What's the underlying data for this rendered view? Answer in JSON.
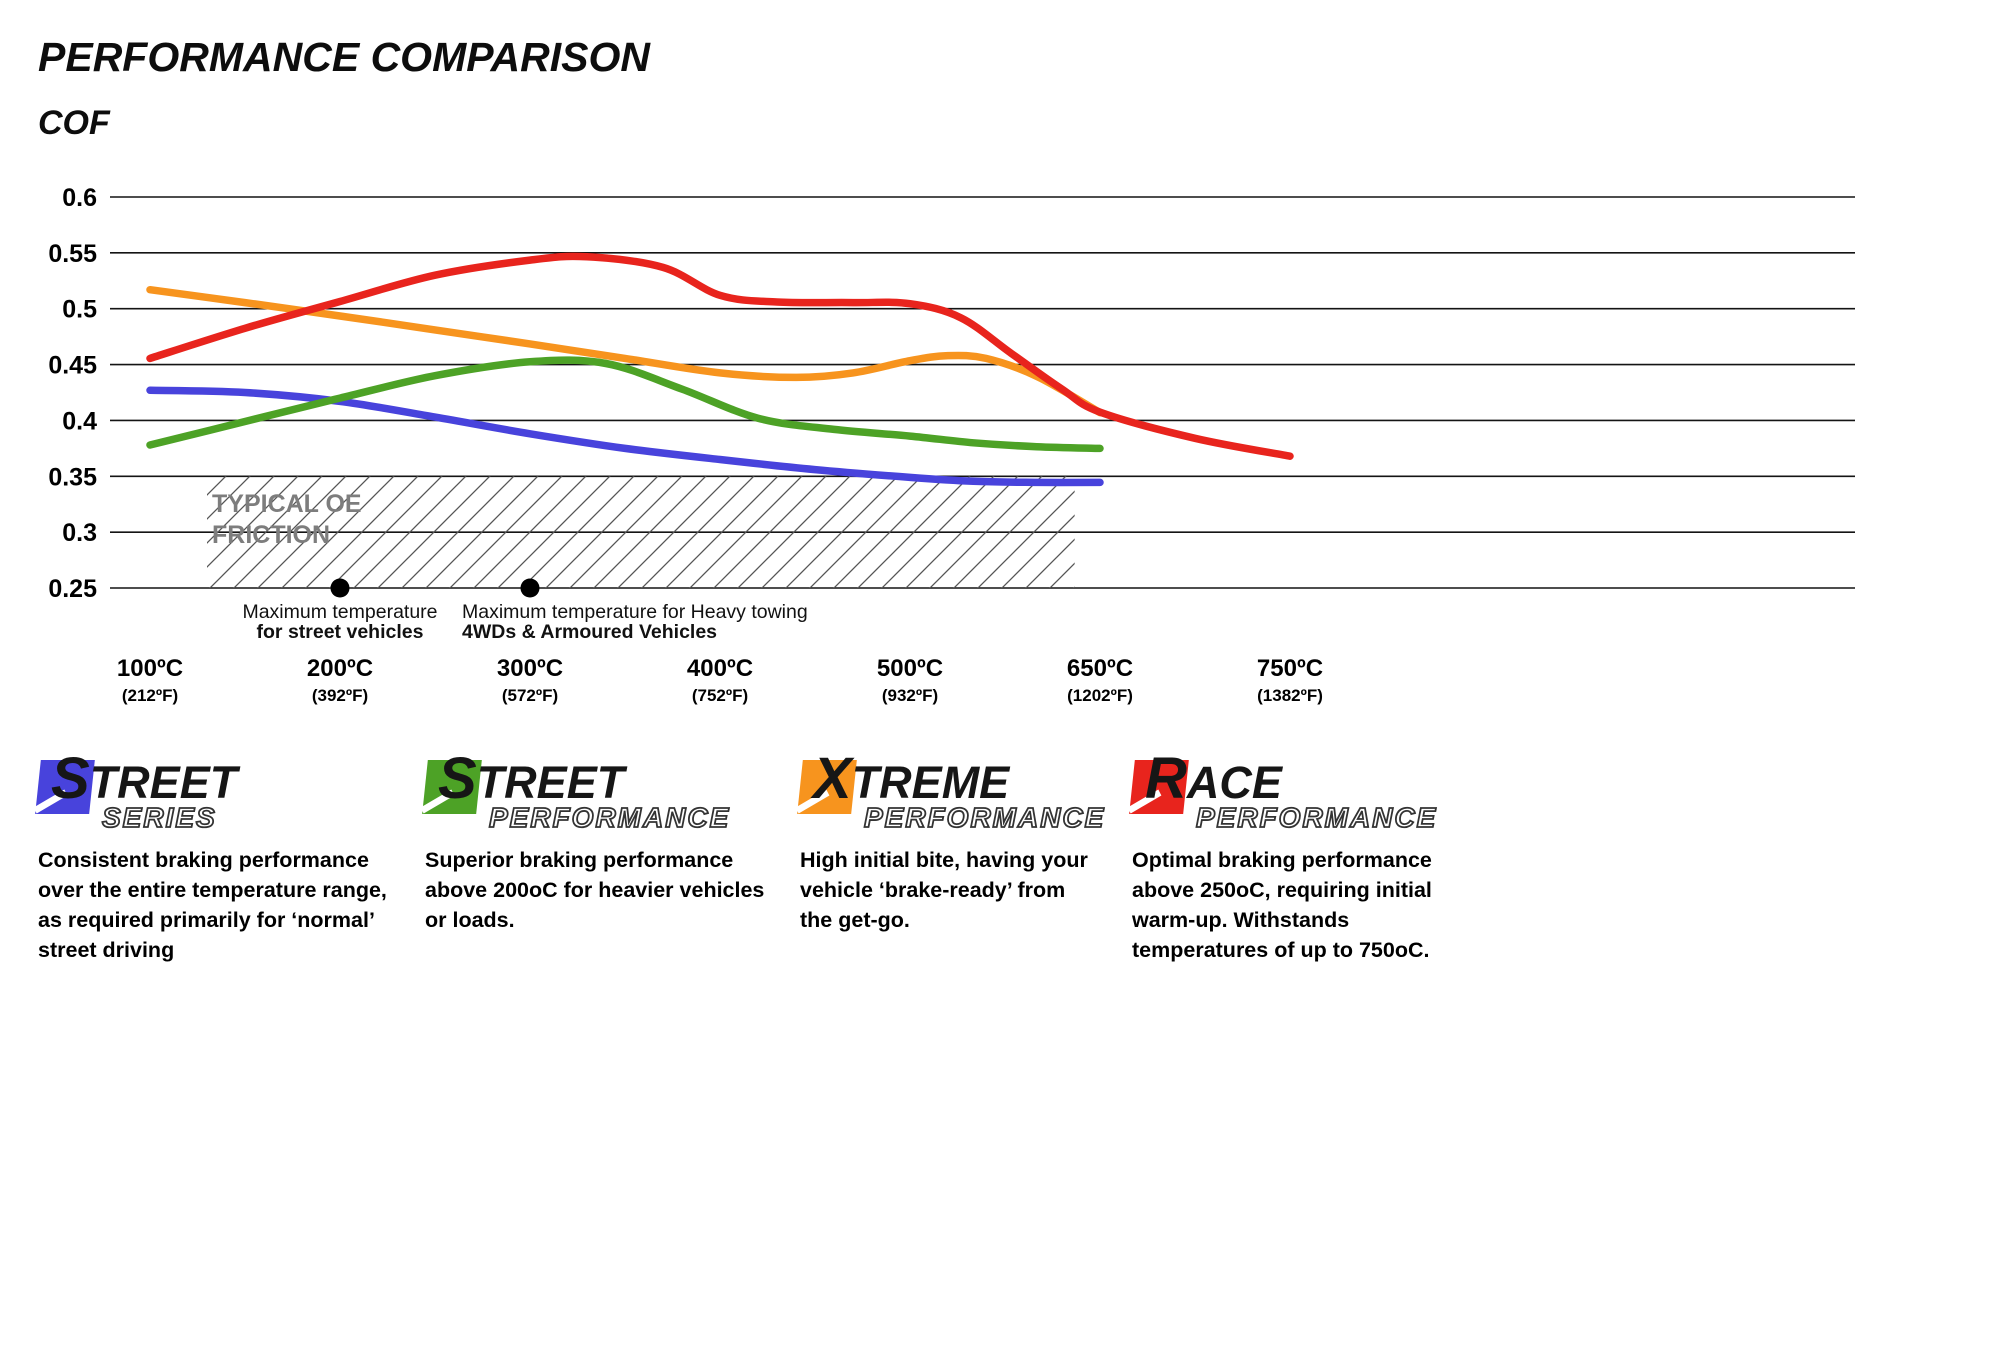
{
  "title": "PERFORMANCE COMPARISON",
  "axis_label": "COF",
  "chart_data": {
    "type": "line",
    "title": "PERFORMANCE COMPARISON",
    "ylabel": "COF",
    "ylim": [
      0.25,
      0.6
    ],
    "grid": "horizontal",
    "legend_position": "bottom",
    "y_ticks": [
      "0.6",
      "0.55",
      "0.5",
      "0.45",
      "0.4",
      "0.35",
      "0.3",
      "0.25"
    ],
    "x_ticks": [
      {
        "temp": 100,
        "c": "100ºC",
        "f": "(212ºF)"
      },
      {
        "temp": 200,
        "c": "200ºC",
        "f": "(392ºF)"
      },
      {
        "temp": 300,
        "c": "300ºC",
        "f": "(572ºF)"
      },
      {
        "temp": 400,
        "c": "400ºC",
        "f": "(752ºF)"
      },
      {
        "temp": 500,
        "c": "500ºC",
        "f": "(932ºF)"
      },
      {
        "temp": 650,
        "c": "650ºC",
        "f": "(1202ºF)"
      },
      {
        "temp": 750,
        "c": "750ºC",
        "f": "(1382ºF)"
      }
    ],
    "series": [
      {
        "id": "street-series",
        "name": "Street Series",
        "color": "#4843dc",
        "points": [
          [
            100,
            0.427
          ],
          [
            150,
            0.425
          ],
          [
            200,
            0.417
          ],
          [
            250,
            0.403
          ],
          [
            300,
            0.388
          ],
          [
            350,
            0.375
          ],
          [
            400,
            0.365
          ],
          [
            450,
            0.356
          ],
          [
            500,
            0.349
          ],
          [
            550,
            0.3455
          ],
          [
            600,
            0.3445
          ],
          [
            650,
            0.3445
          ]
        ]
      },
      {
        "id": "xtreme-performance",
        "name": "Xtreme Performance",
        "color": "#f7941e",
        "points": [
          [
            100,
            0.517
          ],
          [
            150,
            0.5055
          ],
          [
            200,
            0.4935
          ],
          [
            250,
            0.481
          ],
          [
            300,
            0.4685
          ],
          [
            350,
            0.4555
          ],
          [
            400,
            0.4425
          ],
          [
            440,
            0.4385
          ],
          [
            470,
            0.4425
          ],
          [
            500,
            0.4535
          ],
          [
            530,
            0.458
          ],
          [
            560,
            0.4555
          ],
          [
            600,
            0.4395
          ],
          [
            650,
            0.407
          ]
        ]
      },
      {
        "id": "street-performance",
        "name": "Street Performance",
        "color": "#4da226",
        "points": [
          [
            100,
            0.378
          ],
          [
            150,
            0.399
          ],
          [
            200,
            0.42
          ],
          [
            250,
            0.44
          ],
          [
            300,
            0.4525
          ],
          [
            340,
            0.451
          ],
          [
            380,
            0.428
          ],
          [
            420,
            0.402
          ],
          [
            460,
            0.392
          ],
          [
            500,
            0.386
          ],
          [
            550,
            0.38
          ],
          [
            600,
            0.3765
          ],
          [
            650,
            0.375
          ]
        ]
      },
      {
        "id": "race-performance",
        "name": "Race Performance",
        "color": "#e8241d",
        "points": [
          [
            100,
            0.4555
          ],
          [
            150,
            0.4825
          ],
          [
            200,
            0.5065
          ],
          [
            250,
            0.53
          ],
          [
            300,
            0.5435
          ],
          [
            330,
            0.5465
          ],
          [
            370,
            0.537
          ],
          [
            400,
            0.512
          ],
          [
            430,
            0.506
          ],
          [
            470,
            0.5055
          ],
          [
            500,
            0.5045
          ],
          [
            540,
            0.492
          ],
          [
            580,
            0.46
          ],
          [
            620,
            0.428
          ],
          [
            650,
            0.4075
          ],
          [
            700,
            0.384
          ],
          [
            750,
            0.368
          ]
        ]
      }
    ],
    "oe_band": {
      "label_line1": "TYPICAL OE",
      "label_line2": "FRICTION",
      "from_temp": 130,
      "to_temp": 630,
      "cof_min": 0.25,
      "cof_max": 0.35
    },
    "markers": [
      {
        "temp": 200,
        "cof": 0.25,
        "line1": "Maximum temperature",
        "line2": "for street vehicles"
      },
      {
        "temp": 300,
        "cof": 0.25,
        "line1": "Maximum temperature for Heavy towing",
        "line2": "4WDs & Armoured Vehicles"
      }
    ]
  },
  "legend": {
    "items": [
      {
        "first_letter": "S",
        "rest": "TREET",
        "sub": "SERIES",
        "color": "#4843dc",
        "description": "Consistent braking performance over the entire temperature range, as required primarily for ‘normal’ street driving"
      },
      {
        "first_letter": "S",
        "rest": "TREET",
        "sub": "PERFORMANCE",
        "color": "#4da226",
        "description": "Superior braking performance above 200oC for heavier vehicles or loads."
      },
      {
        "first_letter": "X",
        "rest": "TREME",
        "sub": "PERFORMANCE",
        "color": "#f7941e",
        "description": "High initial bite, having your vehicle ‘brake-ready’ from the get-go."
      },
      {
        "first_letter": "R",
        "rest": "ACE",
        "sub": "PERFORMANCE",
        "color": "#e8241d",
        "description": "Optimal braking performance above 250oC, requiring initial warm-up. Withstands temperatures of up to 750oC."
      }
    ]
  }
}
